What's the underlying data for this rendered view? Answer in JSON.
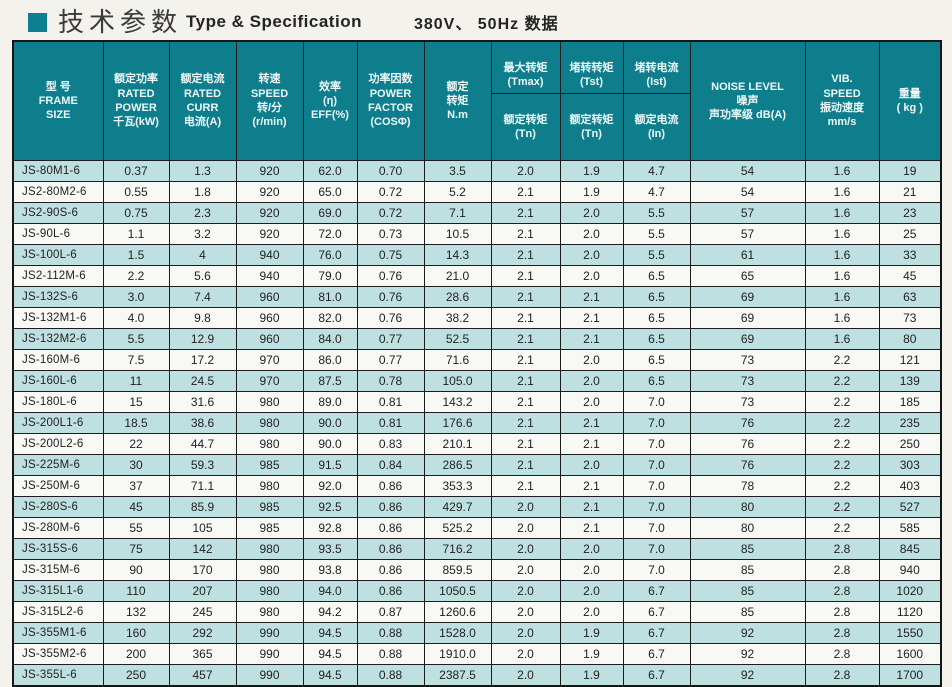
{
  "title": {
    "zh": "技术参数",
    "en": "Type & Specification",
    "spec": "380V、 50Hz 数据"
  },
  "colors": {
    "accent_teal": "#0e7e8d",
    "row_cyan": "#bfe0e1",
    "row_white": "#f8f8f4",
    "border": "#1d1d1d",
    "page_bg": "#f3f2ec"
  },
  "table": {
    "headers": {
      "frame": "型 号\nFRAME\nSIZE",
      "power": "额定功率\nRATED\nPOWER\n千瓦(kW)",
      "current": "额定电流\nRATED\nCURR\n电流(A)",
      "speed": "转速\nSPEED\n转/分\n(r/min)",
      "eff": "效率\n(η)\nEFF(%)",
      "pf": "功率因数\nPOWER\nFACTOR\n(COSΦ)",
      "torque": "额定\n转矩\nN.m",
      "tmax": {
        "top": "最大转矩\n(Tmax)",
        "bottom": "额定转矩\n(Tn)"
      },
      "tst": {
        "top": "堵转转矩\n(Tst)",
        "bottom": "额定转矩\n(Tn)"
      },
      "ist": {
        "top": "堵转电流\n(Ist)",
        "bottom": "额定电流\n(In)"
      },
      "noise": "NOISE LEVEL\n噪声\n声功率级 dB(A)",
      "vib": "VIB.\nSPEED\n振动速度\nmm/s",
      "weight": "重量\n( kg )"
    },
    "rows": [
      [
        "JS-80M1-6",
        "0.37",
        "1.3",
        "920",
        "62.0",
        "0.70",
        "3.5",
        "2.0",
        "1.9",
        "4.7",
        "54",
        "1.6",
        "19"
      ],
      [
        "JS2-80M2-6",
        "0.55",
        "1.8",
        "920",
        "65.0",
        "0.72",
        "5.2",
        "2.1",
        "1.9",
        "4.7",
        "54",
        "1.6",
        "21"
      ],
      [
        "JS2-90S-6",
        "0.75",
        "2.3",
        "920",
        "69.0",
        "0.72",
        "7.1",
        "2.1",
        "2.0",
        "5.5",
        "57",
        "1.6",
        "23"
      ],
      [
        "JS-90L-6",
        "1.1",
        "3.2",
        "920",
        "72.0",
        "0.73",
        "10.5",
        "2.1",
        "2.0",
        "5.5",
        "57",
        "1.6",
        "25"
      ],
      [
        "JS-100L-6",
        "1.5",
        "4",
        "940",
        "76.0",
        "0.75",
        "14.3",
        "2.1",
        "2.0",
        "5.5",
        "61",
        "1.6",
        "33"
      ],
      [
        "JS2-112M-6",
        "2.2",
        "5.6",
        "940",
        "79.0",
        "0.76",
        "21.0",
        "2.1",
        "2.0",
        "6.5",
        "65",
        "1.6",
        "45"
      ],
      [
        "JS-132S-6",
        "3.0",
        "7.4",
        "960",
        "81.0",
        "0.76",
        "28.6",
        "2.1",
        "2.1",
        "6.5",
        "69",
        "1.6",
        "63"
      ],
      [
        "JS-132M1-6",
        "4.0",
        "9.8",
        "960",
        "82.0",
        "0.76",
        "38.2",
        "2.1",
        "2.1",
        "6.5",
        "69",
        "1.6",
        "73"
      ],
      [
        "JS-132M2-6",
        "5.5",
        "12.9",
        "960",
        "84.0",
        "0.77",
        "52.5",
        "2.1",
        "2.1",
        "6.5",
        "69",
        "1.6",
        "80"
      ],
      [
        "JS-160M-6",
        "7.5",
        "17.2",
        "970",
        "86.0",
        "0.77",
        "71.6",
        "2.1",
        "2.0",
        "6.5",
        "73",
        "2.2",
        "121"
      ],
      [
        "JS-160L-6",
        "11",
        "24.5",
        "970",
        "87.5",
        "0.78",
        "105.0",
        "2.1",
        "2.0",
        "6.5",
        "73",
        "2.2",
        "139"
      ],
      [
        "JS-180L-6",
        "15",
        "31.6",
        "980",
        "89.0",
        "0.81",
        "143.2",
        "2.1",
        "2.0",
        "7.0",
        "73",
        "2.2",
        "185"
      ],
      [
        "JS-200L1-6",
        "18.5",
        "38.6",
        "980",
        "90.0",
        "0.81",
        "176.6",
        "2.1",
        "2.1",
        "7.0",
        "76",
        "2.2",
        "235"
      ],
      [
        "JS-200L2-6",
        "22",
        "44.7",
        "980",
        "90.0",
        "0.83",
        "210.1",
        "2.1",
        "2.1",
        "7.0",
        "76",
        "2.2",
        "250"
      ],
      [
        "JS-225M-6",
        "30",
        "59.3",
        "985",
        "91.5",
        "0.84",
        "286.5",
        "2.1",
        "2.0",
        "7.0",
        "76",
        "2.2",
        "303"
      ],
      [
        "JS-250M-6",
        "37",
        "71.1",
        "980",
        "92.0",
        "0.86",
        "353.3",
        "2.1",
        "2.1",
        "7.0",
        "78",
        "2.2",
        "403"
      ],
      [
        "JS-280S-6",
        "45",
        "85.9",
        "985",
        "92.5",
        "0.86",
        "429.7",
        "2.0",
        "2.1",
        "7.0",
        "80",
        "2.2",
        "527"
      ],
      [
        "JS-280M-6",
        "55",
        "105",
        "985",
        "92.8",
        "0.86",
        "525.2",
        "2.0",
        "2.1",
        "7.0",
        "80",
        "2.2",
        "585"
      ],
      [
        "JS-315S-6",
        "75",
        "142",
        "980",
        "93.5",
        "0.86",
        "716.2",
        "2.0",
        "2.0",
        "7.0",
        "85",
        "2.8",
        "845"
      ],
      [
        "JS-315M-6",
        "90",
        "170",
        "980",
        "93.8",
        "0.86",
        "859.5",
        "2.0",
        "2.0",
        "7.0",
        "85",
        "2.8",
        "940"
      ],
      [
        "JS-315L1-6",
        "110",
        "207",
        "980",
        "94.0",
        "0.86",
        "1050.5",
        "2.0",
        "2.0",
        "6.7",
        "85",
        "2.8",
        "1020"
      ],
      [
        "JS-315L2-6",
        "132",
        "245",
        "980",
        "94.2",
        "0.87",
        "1260.6",
        "2.0",
        "2.0",
        "6.7",
        "85",
        "2.8",
        "1120"
      ],
      [
        "JS-355M1-6",
        "160",
        "292",
        "990",
        "94.5",
        "0.88",
        "1528.0",
        "2.0",
        "1.9",
        "6.7",
        "92",
        "2.8",
        "1550"
      ],
      [
        "JS-355M2-6",
        "200",
        "365",
        "990",
        "94.5",
        "0.88",
        "1910.0",
        "2.0",
        "1.9",
        "6.7",
        "92",
        "2.8",
        "1600"
      ],
      [
        "JS-355L-6",
        "250",
        "457",
        "990",
        "94.5",
        "0.88",
        "2387.5",
        "2.0",
        "1.9",
        "6.7",
        "92",
        "2.8",
        "1700"
      ]
    ]
  }
}
